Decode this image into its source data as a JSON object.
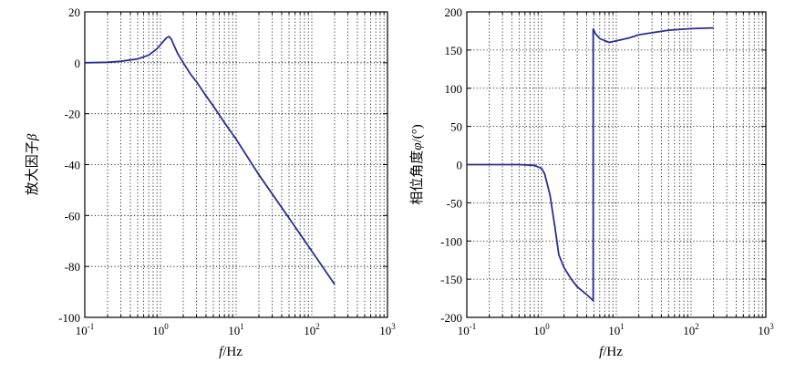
{
  "chart_data": [
    {
      "type": "line",
      "xscale": "log",
      "xlim": [
        0.1,
        1000
      ],
      "ylim": [
        -100,
        20
      ],
      "xticks": [
        {
          "base": "10",
          "exp": "-1"
        },
        {
          "base": "10",
          "exp": "0"
        },
        {
          "base": "10",
          "exp": "1"
        },
        {
          "base": "10",
          "exp": "2"
        },
        {
          "base": "10",
          "exp": "3"
        }
      ],
      "yticks": [
        "20",
        "0",
        "-20",
        "-40",
        "-60",
        "-80",
        "-100"
      ],
      "xlabel": {
        "var": "f",
        "unit": "/Hz"
      },
      "ylabel": {
        "text": "放大因子",
        "var": "β"
      },
      "grid": true,
      "series_color": "#2b2f8f",
      "series": [
        {
          "x": [
            0.1,
            0.2,
            0.3,
            0.5,
            0.7,
            0.9,
            1.1,
            1.2,
            1.3,
            1.4,
            1.5,
            1.7,
            2.0,
            2.5,
            3.0,
            4.0,
            5.0,
            7.0,
            10,
            20,
            50,
            100,
            200
          ],
          "y": [
            0,
            0.2,
            0.6,
            1.5,
            3.0,
            5.5,
            8.5,
            9.8,
            10.3,
            9.2,
            7.0,
            3.5,
            0.0,
            -4.5,
            -7.5,
            -13.0,
            -17.0,
            -23.5,
            -30.0,
            -44.0,
            -61.0,
            -74.0,
            -87.0
          ]
        }
      ]
    },
    {
      "type": "line",
      "xscale": "log",
      "xlim": [
        0.1,
        1000
      ],
      "ylim": [
        -200,
        200
      ],
      "xticks": [
        {
          "base": "10",
          "exp": "-1"
        },
        {
          "base": "10",
          "exp": "0"
        },
        {
          "base": "10",
          "exp": "1"
        },
        {
          "base": "10",
          "exp": "2"
        },
        {
          "base": "10",
          "exp": "3"
        }
      ],
      "yticks": [
        "200",
        "150",
        "100",
        "50",
        "0",
        "-50",
        "-100",
        "-150",
        "-200"
      ],
      "xlabel": {
        "var": "f",
        "unit": "/Hz"
      },
      "ylabel": {
        "text": "相位角度",
        "var": "φ",
        "unit": "/(°)"
      },
      "grid": true,
      "series_color": "#2b2f8f",
      "series": [
        {
          "x": [
            0.1,
            0.5,
            0.8,
            1.0,
            1.1,
            1.3,
            1.5,
            1.7,
            2.0,
            2.5,
            3.0,
            4.0,
            4.9,
            4.9,
            5.2,
            6.0,
            8.0,
            10,
            15,
            20,
            50,
            100,
            200
          ],
          "y": [
            0,
            0,
            -1,
            -5,
            -12,
            -40,
            -80,
            -118,
            -135,
            -150,
            -160,
            -170,
            -178,
            178,
            172,
            165,
            160,
            162,
            166,
            170,
            176,
            178,
            179
          ]
        }
      ]
    }
  ]
}
